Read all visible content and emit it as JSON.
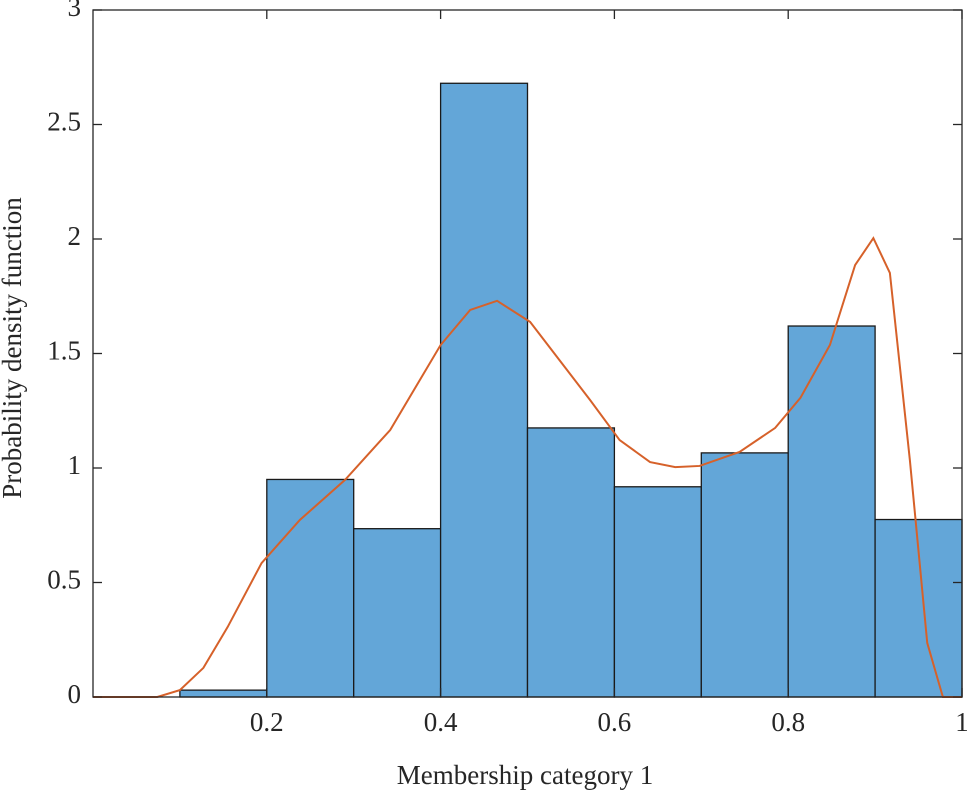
{
  "chart_data": {
    "type": "histogram",
    "x_label": "Membership category 1",
    "y_label": "Probability density function",
    "bins": [
      0.1,
      0.2,
      0.3,
      0.4,
      0.5,
      0.6,
      0.7,
      0.8,
      0.9,
      1.0
    ],
    "values": [
      0.03,
      0.95,
      0.735,
      2.68,
      1.175,
      0.918,
      1.066,
      1.62,
      0.775
    ],
    "color": "#63a6d8",
    "overlay": {
      "type": "line",
      "color": "#d6612a",
      "x": [
        0,
        0.074,
        0.1,
        0.127,
        0.155,
        0.194,
        0.238,
        0.29,
        0.342,
        0.4,
        0.434,
        0.465,
        0.503,
        0.537,
        0.572,
        0.606,
        0.641,
        0.67,
        0.698,
        0.744,
        0.785,
        0.814,
        0.848,
        0.877,
        0.898,
        0.917,
        0.94,
        0.96,
        0.978,
        1
      ],
      "values": [
        0,
        0,
        0.03,
        0.127,
        0.306,
        0.585,
        0.773,
        0.948,
        1.166,
        1.537,
        1.69,
        1.73,
        1.638,
        1.47,
        1.297,
        1.122,
        1.026,
        1.004,
        1.009,
        1.07,
        1.175,
        1.306,
        1.537,
        1.886,
        2.004,
        1.852,
        1.035,
        0.236,
        0,
        0
      ]
    },
    "xlim": [
      0,
      1
    ],
    "xticks": [
      0.2,
      0.4,
      0.6,
      0.8,
      1
    ],
    "ylim": [
      0,
      3
    ],
    "yticks": [
      0,
      0.5,
      1,
      1.5,
      2,
      2.5,
      3
    ]
  }
}
